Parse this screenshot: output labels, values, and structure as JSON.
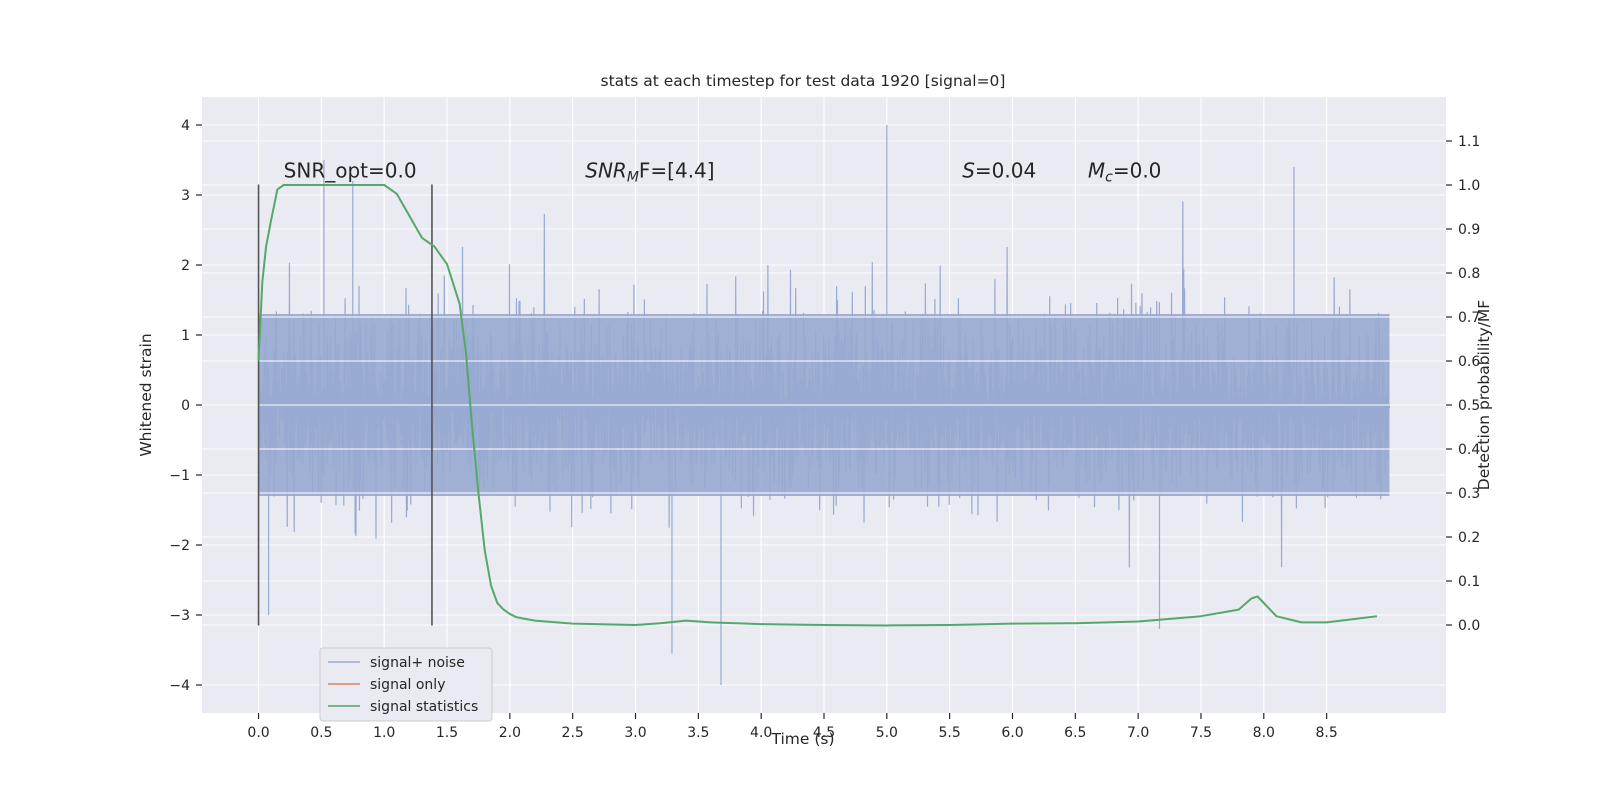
{
  "chart_data": {
    "type": "line",
    "title": "stats at each timestep for test data 1920 [signal=0]",
    "xlabel": "Time (s)",
    "ylabel_left": "Whitened strain",
    "ylabel_right": "Detection probability/MF",
    "xlim": [
      -0.45,
      9.45
    ],
    "ylim_left": [
      -4.4,
      4.4
    ],
    "ylim_right": [
      -0.2,
      1.2
    ],
    "x_ticks": [
      0.0,
      0.5,
      1.0,
      1.5,
      2.0,
      2.5,
      3.0,
      3.5,
      4.0,
      4.5,
      5.0,
      5.5,
      6.0,
      6.5,
      7.0,
      7.5,
      8.0,
      8.5
    ],
    "x_tick_labels": [
      "0.0",
      "0.5",
      "1.0",
      "1.5",
      "2.0",
      "2.5",
      "3.0",
      "3.5",
      "4.0",
      "4.5",
      "5.0",
      "5.5",
      "6.0",
      "6.5",
      "7.0",
      "7.5",
      "8.0",
      "8.5"
    ],
    "y_left_ticks": [
      4,
      3,
      2,
      1,
      0,
      -1,
      -2,
      -3,
      -4
    ],
    "y_left_tick_labels": [
      "4",
      "3",
      "2",
      "1",
      "0",
      "−1",
      "−2",
      "−3",
      "−4"
    ],
    "y_right_ticks": [
      1.1,
      1.0,
      0.9,
      0.8,
      0.7,
      0.6,
      0.5,
      0.4,
      0.3,
      0.2,
      0.1,
      0.0
    ],
    "y_right_tick_labels": [
      "1.1",
      "1.0",
      "0.9",
      "0.8",
      "0.7",
      "0.6",
      "0.5",
      "0.4",
      "0.3",
      "0.2",
      "0.1",
      "0.0"
    ],
    "grid": true,
    "legend_position": "lower-left",
    "colors": {
      "background": "#eaeaf2",
      "grid": "#ffffff",
      "noise": "#98aad0",
      "signal_only": "#dd8452",
      "statistics": "#55a868",
      "marker": "#555555"
    },
    "series": [
      {
        "name": "signal+ noise",
        "axis": "left",
        "description": "dense whitened strain noise, 0 to 9 s",
        "t_start": 0.0,
        "t_end": 9.0,
        "typical_envelope": [
          -1.3,
          1.3
        ],
        "peaks": [
          {
            "x": 0.52,
            "y": 3.5
          },
          {
            "x": 0.75,
            "y": 3.2
          },
          {
            "x": 5.0,
            "y": 4.0
          },
          {
            "x": 8.24,
            "y": 3.4
          },
          {
            "x": 3.68,
            "y": -4.0
          },
          {
            "x": 3.29,
            "y": -3.55
          },
          {
            "x": 0.08,
            "y": -3.0
          },
          {
            "x": 7.17,
            "y": -3.2
          }
        ]
      },
      {
        "name": "signal only",
        "axis": "left",
        "values": []
      },
      {
        "name": "signal statistics",
        "axis": "right",
        "x": [
          0.0,
          0.03,
          0.06,
          0.1,
          0.15,
          0.2,
          0.3,
          0.5,
          0.8,
          1.0,
          1.1,
          1.2,
          1.3,
          1.4,
          1.5,
          1.6,
          1.65,
          1.7,
          1.75,
          1.8,
          1.85,
          1.9,
          1.95,
          2.0,
          2.05,
          2.1,
          2.2,
          2.5,
          3.0,
          3.2,
          3.4,
          3.6,
          4.0,
          4.5,
          5.0,
          5.5,
          6.0,
          6.5,
          7.0,
          7.5,
          7.8,
          7.9,
          7.95,
          8.0,
          8.1,
          8.3,
          8.5,
          8.9
        ],
        "y": [
          0.6,
          0.78,
          0.86,
          0.92,
          0.99,
          1.0,
          1.0,
          1.0,
          1.0,
          1.0,
          0.98,
          0.93,
          0.88,
          0.86,
          0.82,
          0.73,
          0.62,
          0.45,
          0.3,
          0.17,
          0.09,
          0.05,
          0.035,
          0.025,
          0.018,
          0.015,
          0.01,
          0.003,
          0.0,
          0.004,
          0.01,
          0.006,
          0.002,
          0.0,
          -0.001,
          0.0,
          0.003,
          0.004,
          0.008,
          0.02,
          0.035,
          0.06,
          0.065,
          0.05,
          0.02,
          0.006,
          0.006,
          0.02
        ]
      }
    ],
    "vertical_markers": [
      0.0,
      1.38
    ],
    "annotations": [
      {
        "text": "SNR_opt=0.0",
        "x": 0.2,
        "y": 3.25
      },
      {
        "text_main": "SNR",
        "text_sub": "M",
        "text_tail": "F=[4.4]",
        "x": 2.6,
        "y": 3.25
      },
      {
        "text_main": "S",
        "text_tail": "=0.04",
        "x": 5.6,
        "y": 3.25
      },
      {
        "text_main": "M",
        "text_sub": "c",
        "text_tail": "=0.0",
        "x": 6.6,
        "y": 3.25
      }
    ],
    "legend": [
      "signal+ noise",
      "signal only",
      "signal statistics"
    ]
  }
}
